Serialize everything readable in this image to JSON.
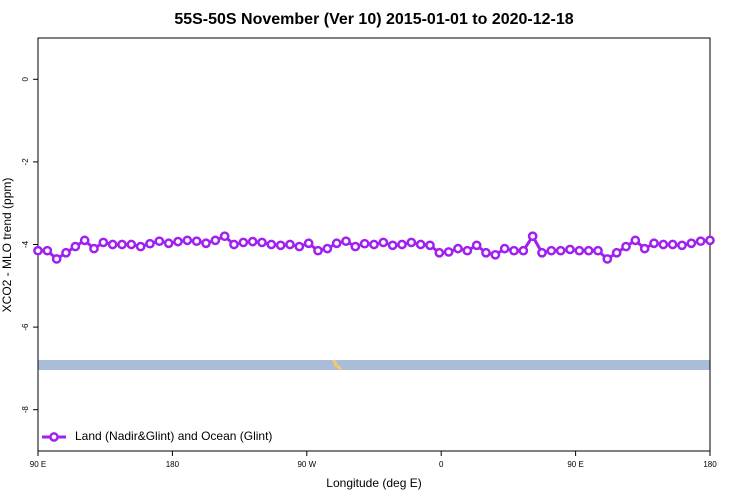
{
  "chart_data": {
    "type": "line",
    "title": "55S-50S November (Ver 10)   2015-01-01 to 2020-12-18",
    "xlabel": "Longitude (deg E)",
    "ylabel": "XCO2 - MLO trend (ppm)",
    "xlim": [
      90,
      540
    ],
    "ylim": [
      -9,
      1
    ],
    "xticks": [
      {
        "value": 90,
        "label": "90 E"
      },
      180,
      {
        "value": 270,
        "label": "90 W"
      },
      {
        "value": 360,
        "label": "0"
      },
      {
        "value": 450,
        "label": "90 E"
      },
      {
        "value": 540,
        "label": "180"
      }
    ],
    "yticks": [
      0,
      -2,
      -4,
      -6,
      -8
    ],
    "legend": "bottom-left",
    "x": [
      90,
      96.25,
      102.5,
      108.75,
      115,
      121.25,
      127.5,
      133.75,
      140,
      146.25,
      152.5,
      158.75,
      165,
      171.25,
      177.5,
      183.75,
      190,
      196.25,
      202.5,
      208.75,
      215,
      221.25,
      227.5,
      233.75,
      240,
      246.25,
      252.5,
      258.75,
      265,
      271.25,
      277.5,
      283.75,
      290,
      296.25,
      302.5,
      308.75,
      315,
      321.25,
      327.5,
      333.75,
      340,
      346.25,
      352.5,
      358.75,
      365,
      371.25,
      377.5,
      383.75,
      390,
      396.25,
      402.5,
      408.75,
      415,
      421.25,
      427.5,
      433.75,
      440,
      446.25,
      452.5,
      458.75,
      465,
      471.25,
      477.5,
      483.75,
      490,
      496.25,
      502.5,
      508.75,
      515,
      521.25,
      527.5,
      533.75,
      540
    ],
    "series": [
      {
        "name": "Land (Nadir&Glint) and Ocean (Glint)",
        "color": "#a020f0",
        "values": [
          -4.15,
          -4.15,
          -4.35,
          -4.2,
          -4.05,
          -3.9,
          -4.1,
          -3.95,
          -4.0,
          -4.0,
          -4.0,
          -4.05,
          -3.98,
          -3.92,
          -3.97,
          -3.93,
          -3.9,
          -3.92,
          -3.97,
          -3.9,
          -3.8,
          -4.0,
          -3.95,
          -3.93,
          -3.95,
          -4.0,
          -4.02,
          -4.0,
          -4.05,
          -3.97,
          -4.15,
          -4.1,
          -3.97,
          -3.92,
          -4.05,
          -3.98,
          -4.0,
          -3.95,
          -4.02,
          -4.0,
          -3.95,
          -4.0,
          -4.02,
          -4.2,
          -4.18,
          -4.1,
          -4.15,
          -4.02,
          -4.2,
          -4.25,
          -4.1,
          -4.15,
          -4.15,
          -3.8,
          -4.2,
          -4.15,
          -4.15,
          -4.12,
          -4.15,
          -4.15,
          -4.15,
          -4.35,
          -4.2,
          -4.05,
          -3.9,
          -4.1,
          -3.97,
          -4.0,
          -4.0,
          -4.02,
          -3.97,
          -3.92,
          -3.9
        ]
      }
    ]
  }
}
